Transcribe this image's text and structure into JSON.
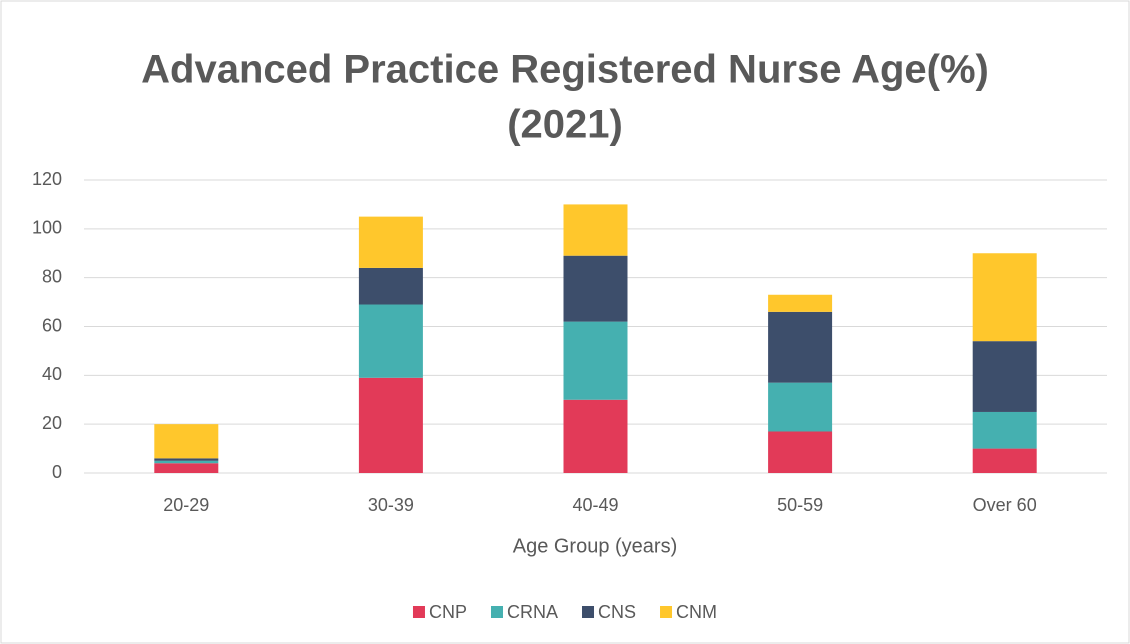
{
  "chart_data": {
    "type": "stacked_bar",
    "title": [
      "Advanced Practice Registered Nurse Age(%)",
      "(2021)"
    ],
    "x_label": "Age Group (years)",
    "categories": [
      "20-29",
      "30-39",
      "40-49",
      "50-59",
      "Over 60"
    ],
    "series": [
      {
        "name": "CNP",
        "color": "#e23a58",
        "values": [
          4,
          39,
          30,
          17,
          10
        ]
      },
      {
        "name": "CRNA",
        "color": "#45b0b0",
        "values": [
          1,
          30,
          32,
          20,
          15
        ]
      },
      {
        "name": "CNS",
        "color": "#3d4e6b",
        "values": [
          1,
          15,
          27,
          29,
          29
        ]
      },
      {
        "name": "CNM",
        "color": "#ffc72c",
        "values": [
          14,
          21,
          21,
          7,
          36
        ]
      }
    ],
    "ylim": [
      0,
      120
    ],
    "yticks": [
      0,
      20,
      40,
      60,
      80,
      100,
      120
    ],
    "grid": true,
    "legend": "bottom"
  }
}
